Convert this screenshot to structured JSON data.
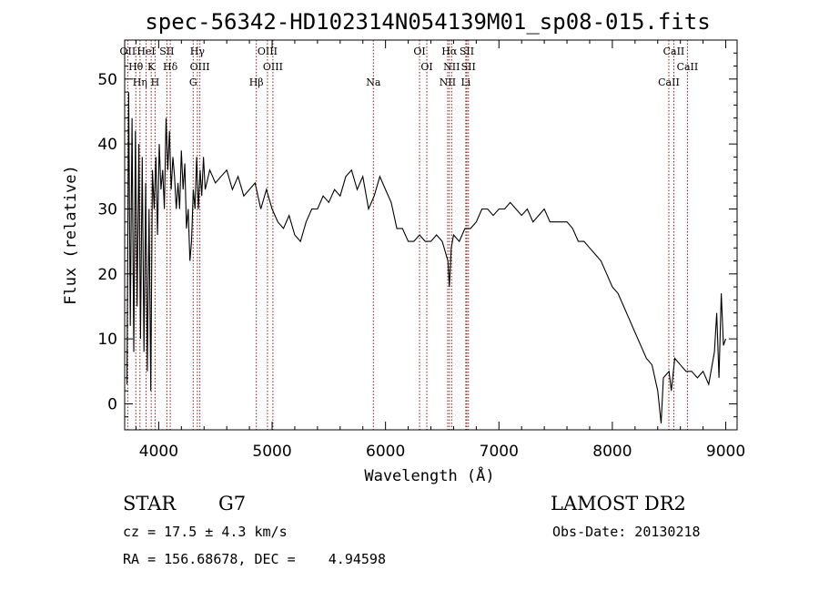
{
  "chart_data": {
    "type": "line",
    "title": "spec-56342-HD102314N054139M01_sp08-015.fits",
    "xlabel": "Wavelength (Å)",
    "ylabel": "Flux (relative)",
    "xlim": [
      3700,
      9100
    ],
    "ylim": [
      -4,
      56
    ],
    "x_ticks": [
      4000,
      5000,
      6000,
      7000,
      8000,
      9000
    ],
    "y_ticks": [
      0,
      10,
      20,
      30,
      40,
      50
    ],
    "grid": false,
    "line_color": "#000000",
    "marker_color": "#8b1a1a",
    "series": [
      {
        "x": [
          3720,
          3735,
          3750,
          3765,
          3780,
          3795,
          3810,
          3825,
          3840,
          3855,
          3870,
          3885,
          3900,
          3915,
          3930,
          3945,
          3960,
          3975,
          3990,
          4005,
          4020,
          4035,
          4050,
          4065,
          4080,
          4095,
          4110,
          4125,
          4140,
          4155,
          4170,
          4185,
          4200,
          4215,
          4230,
          4245,
          4260,
          4275,
          4290,
          4305,
          4320,
          4335,
          4350,
          4365,
          4380,
          4395,
          4410,
          4450,
          4500,
          4550,
          4600,
          4650,
          4700,
          4750,
          4800,
          4850,
          4900,
          4950,
          5000,
          5050,
          5100,
          5150,
          5200,
          5250,
          5300,
          5350,
          5400,
          5450,
          5500,
          5550,
          5600,
          5650,
          5700,
          5750,
          5800,
          5850,
          5900,
          5950,
          6000,
          6050,
          6100,
          6150,
          6200,
          6250,
          6300,
          6350,
          6400,
          6450,
          6500,
          6550,
          6563,
          6580,
          6600,
          6650,
          6700,
          6750,
          6800,
          6850,
          6900,
          6950,
          7000,
          7050,
          7100,
          7150,
          7200,
          7250,
          7300,
          7350,
          7400,
          7450,
          7500,
          7550,
          7600,
          7650,
          7700,
          7750,
          7800,
          7850,
          7900,
          7950,
          8000,
          8050,
          8100,
          8150,
          8200,
          8250,
          8300,
          8350,
          8400,
          8430,
          8450,
          8500,
          8520,
          8550,
          8600,
          8650,
          8700,
          8750,
          8800,
          8850,
          8900,
          8920,
          8940,
          8960,
          8980,
          9000
        ],
        "y": [
          3,
          48,
          12,
          44,
          8,
          42,
          15,
          40,
          10,
          38,
          8,
          34,
          5,
          30,
          2,
          36,
          30,
          38,
          26,
          40,
          33,
          36,
          30,
          44,
          36,
          42,
          33,
          38,
          35,
          30,
          34,
          30,
          39,
          33,
          37,
          27,
          30,
          22,
          25,
          33,
          30,
          38,
          30,
          36,
          32,
          38,
          33,
          36,
          34,
          35,
          36,
          33,
          35,
          32,
          33,
          34,
          30,
          33,
          30,
          28,
          27,
          29,
          26,
          25,
          28,
          30,
          30,
          32,
          31,
          33,
          32,
          35,
          36,
          33,
          35,
          30,
          32,
          35,
          33,
          31,
          27,
          27,
          25,
          25,
          26,
          25,
          25,
          26,
          25,
          22,
          18,
          24,
          26,
          25,
          27,
          27,
          28,
          30,
          30,
          29,
          30,
          30,
          31,
          30,
          29,
          30,
          28,
          29,
          30,
          28,
          28,
          28,
          28,
          27,
          25,
          25,
          24,
          23,
          22,
          20,
          18,
          17,
          15,
          13,
          11,
          9,
          7,
          6,
          2,
          -3,
          4,
          5,
          2,
          7,
          6,
          5,
          5,
          4,
          5,
          3,
          8,
          14,
          4,
          17,
          9,
          10
        ]
      }
    ],
    "lines": [
      {
        "name": "OII",
        "x": 3727
      },
      {
        "name": "Hθ",
        "x": 3798
      },
      {
        "name": "Hη",
        "x": 3835
      },
      {
        "name": "HeI",
        "x": 3889
      },
      {
        "name": "K",
        "x": 3934
      },
      {
        "name": "H",
        "x": 3968
      },
      {
        "name": "SII",
        "x": 4072
      },
      {
        "name": "Hδ",
        "x": 4102
      },
      {
        "name": "G",
        "x": 4304
      },
      {
        "name": "Hγ",
        "x": 4341
      },
      {
        "name": "OIII",
        "x": 4363
      },
      {
        "name": "Hβ",
        "x": 4861
      },
      {
        "name": "OIII",
        "x": 4959
      },
      {
        "name": "OIII",
        "x": 5007
      },
      {
        "name": "Na",
        "x": 5893
      },
      {
        "name": "OI",
        "x": 6300
      },
      {
        "name": "OI",
        "x": 6364
      },
      {
        "name": "NII",
        "x": 6548
      },
      {
        "name": "Hα",
        "x": 6563
      },
      {
        "name": "NII",
        "x": 6583
      },
      {
        "name": "Li",
        "x": 6708
      },
      {
        "name": "SII",
        "x": 6717
      },
      {
        "name": "SII",
        "x": 6731
      },
      {
        "name": "CaII",
        "x": 8498
      },
      {
        "name": "CaII",
        "x": 8542
      },
      {
        "name": "CaII",
        "x": 8662
      }
    ]
  },
  "info": {
    "object_class": "STAR",
    "subclass": "G7",
    "survey": "LAMOST DR2",
    "redshift": "cz = 17.5 ± 4.3 km/s",
    "obs_date": "Obs-Date: 20130218",
    "coords": "RA = 156.68678, DEC =    4.94598"
  }
}
